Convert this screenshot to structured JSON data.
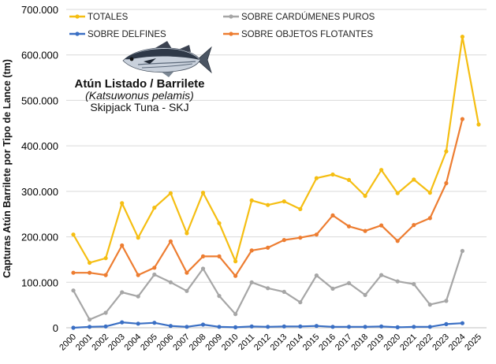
{
  "species": {
    "title": "Atún Listado / Barrilete",
    "latin": "(Katsuwonus pelamis)",
    "english": "Skipjack Tuna - SKJ"
  },
  "colors": {
    "totales": "#F5BE12",
    "cardumenes": "#A6A6A6",
    "delfines": "#3A6FC4",
    "objetos": "#ED7D31"
  },
  "chart_data": {
    "type": "line",
    "ylabel": "Capturas Atún Barrilete por Tipo de Lance (tm)",
    "xlabel": "",
    "ylim": [
      0,
      700000
    ],
    "yticks": [
      {
        "value": 0,
        "label": "0"
      },
      {
        "value": 100000,
        "label": "100.000"
      },
      {
        "value": 200000,
        "label": "200.000"
      },
      {
        "value": 300000,
        "label": "300.000"
      },
      {
        "value": 400000,
        "label": "400.000"
      },
      {
        "value": 500000,
        "label": "500.000"
      },
      {
        "value": 600000,
        "label": "600.000"
      },
      {
        "value": 700000,
        "label": "700.000"
      }
    ],
    "grid": true,
    "legend_position": "top",
    "x": [
      "2000",
      "2001",
      "2002",
      "2003",
      "2004",
      "2005",
      "2006",
      "2007",
      "2008",
      "2009",
      "2010",
      "2011",
      "2012",
      "2013",
      "2014",
      "2015",
      "2016",
      "2017",
      "2018",
      "2019",
      "2020",
      "2021",
      "2022",
      "2023",
      "2024",
      "2025"
    ],
    "series": [
      {
        "name": "TOTALES",
        "color_key": "totales",
        "values": [
          205000,
          143000,
          153000,
          274000,
          198000,
          264000,
          296000,
          208000,
          297000,
          230000,
          146000,
          280000,
          270000,
          278000,
          261000,
          329000,
          337000,
          325000,
          290000,
          347000,
          296000,
          326000,
          297000,
          388000,
          640000,
          447000
        ]
      },
      {
        "name": "SOBRE DELFINES",
        "color_key": "delfines",
        "values": [
          0,
          2000,
          3000,
          12000,
          9000,
          11000,
          4000,
          2000,
          7000,
          2000,
          1000,
          3000,
          2000,
          3000,
          3000,
          4000,
          2000,
          2000,
          2000,
          3000,
          1000,
          2000,
          2000,
          8000,
          10000,
          null
        ]
      },
      {
        "name": "SOBRE CARDÚMENES PUROS",
        "color_key": "cardumenes",
        "values": [
          82000,
          18000,
          33000,
          78000,
          69000,
          117000,
          100000,
          81000,
          130000,
          70000,
          30000,
          100000,
          87000,
          79000,
          56000,
          115000,
          86000,
          98000,
          72000,
          116000,
          102000,
          96000,
          51000,
          59000,
          169000,
          null
        ]
      },
      {
        "name": "SOBRE OBJETOS FLOTANTES",
        "color_key": "objetos",
        "values": [
          121000,
          121000,
          116000,
          181000,
          116000,
          132000,
          190000,
          121000,
          157000,
          157000,
          114000,
          170000,
          176000,
          193000,
          198000,
          205000,
          247000,
          223000,
          213000,
          225000,
          191000,
          226000,
          241000,
          318000,
          459000,
          null
        ]
      }
    ]
  }
}
